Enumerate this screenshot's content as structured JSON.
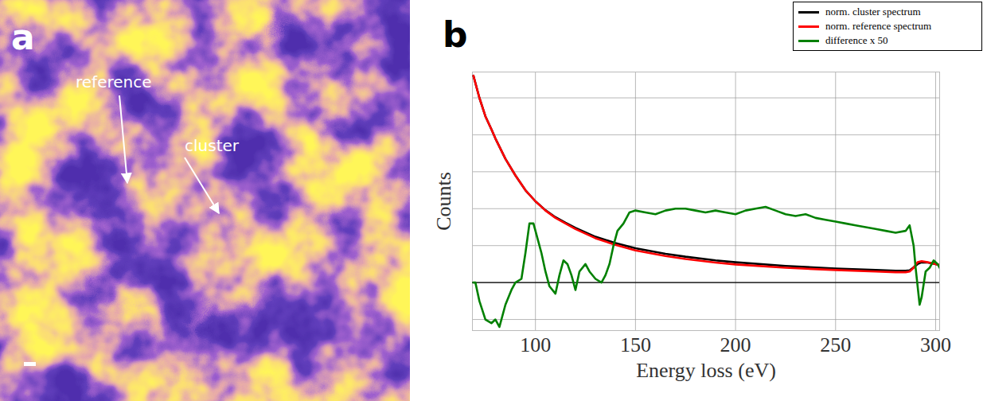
{
  "chart_data": [
    {
      "panel": "a",
      "type": "image",
      "annotations": [
        "reference",
        "cluster"
      ]
    },
    {
      "panel": "b",
      "type": "line",
      "xlabel": "Energy loss (eV)",
      "ylabel": "Counts",
      "xlim": [
        68.5,
        302
      ],
      "ylim": [
        -1.3,
        5.7
      ],
      "xticks": [
        100,
        150,
        200,
        250,
        300
      ],
      "yticks": [
        -1,
        0,
        1,
        2,
        3,
        4,
        5
      ],
      "tick_labels": "x",
      "grid": true,
      "legend": "upper right",
      "baseline": 0,
      "series": [
        {
          "name": "norm. cluster spectrum",
          "color": "#000000",
          "x": [
            69,
            72,
            75,
            78,
            80,
            85,
            90,
            95,
            100,
            105,
            110,
            115,
            120,
            130,
            140,
            150,
            165,
            175,
            190,
            200,
            225,
            250,
            270,
            280,
            285,
            287,
            289,
            291,
            293,
            296,
            300,
            302
          ],
          "values": [
            5.6,
            5.0,
            4.5,
            4.15,
            3.9,
            3.35,
            2.9,
            2.5,
            2.2,
            1.96,
            1.77,
            1.62,
            1.48,
            1.24,
            1.07,
            0.93,
            0.78,
            0.7,
            0.6,
            0.55,
            0.45,
            0.38,
            0.34,
            0.32,
            0.32,
            0.33,
            0.41,
            0.5,
            0.55,
            0.54,
            0.5,
            0.47
          ]
        },
        {
          "name": "norm. reference spectrum",
          "color": "#ff0000",
          "x": [
            69,
            72,
            75,
            78,
            80,
            85,
            90,
            95,
            100,
            105,
            110,
            115,
            120,
            130,
            140,
            150,
            165,
            175,
            190,
            200,
            225,
            250,
            270,
            280,
            285,
            287,
            289,
            291,
            293,
            296,
            300,
            302
          ],
          "values": [
            5.6,
            5.0,
            4.5,
            4.15,
            3.9,
            3.35,
            2.9,
            2.5,
            2.2,
            1.95,
            1.75,
            1.6,
            1.45,
            1.2,
            1.02,
            0.87,
            0.72,
            0.64,
            0.54,
            0.49,
            0.4,
            0.34,
            0.3,
            0.28,
            0.28,
            0.3,
            0.4,
            0.55,
            0.58,
            0.55,
            0.5,
            0.47
          ]
        },
        {
          "name": "difference x 50",
          "color": "#008000",
          "x": [
            69,
            70,
            72,
            75,
            78,
            80,
            82,
            85,
            88,
            90,
            93,
            95,
            97,
            99,
            101,
            103,
            105,
            107,
            110,
            112,
            114,
            116,
            118,
            120,
            122,
            125,
            127,
            130,
            133,
            135,
            137,
            139,
            141,
            144,
            147,
            150,
            155,
            160,
            165,
            170,
            175,
            180,
            185,
            190,
            195,
            200,
            205,
            210,
            215,
            220,
            225,
            230,
            235,
            240,
            245,
            250,
            255,
            260,
            265,
            270,
            275,
            280,
            285,
            287,
            289,
            290,
            292,
            293,
            295,
            297,
            299,
            301,
            302
          ],
          "values": [
            0,
            0,
            -0.5,
            -1.0,
            -1.1,
            -1.0,
            -1.2,
            -0.6,
            -0.2,
            0,
            0.1,
            0.8,
            1.6,
            1.6,
            1.2,
            0.8,
            0.3,
            -0.1,
            -0.3,
            0.2,
            0.6,
            0.5,
            0.2,
            -0.2,
            0.3,
            0.5,
            0.3,
            0.1,
            0.0,
            0.2,
            0.5,
            1.0,
            1.4,
            1.6,
            1.9,
            1.95,
            1.9,
            1.85,
            1.95,
            2.0,
            2.0,
            1.95,
            1.9,
            1.95,
            1.9,
            1.85,
            1.95,
            2.0,
            2.05,
            1.95,
            1.85,
            1.8,
            1.85,
            1.75,
            1.7,
            1.65,
            1.6,
            1.55,
            1.5,
            1.45,
            1.4,
            1.35,
            1.4,
            1.55,
            1.0,
            0.4,
            -0.6,
            -0.4,
            0.3,
            0.4,
            0.6,
            0.5,
            0.4
          ]
        }
      ]
    }
  ]
}
